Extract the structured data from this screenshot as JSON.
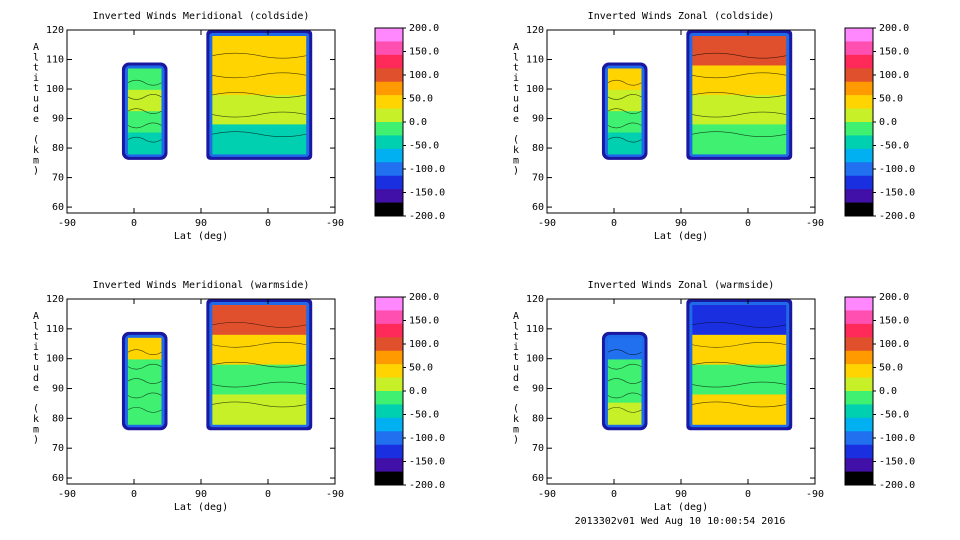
{
  "footer": "2013302v01 Wed Aug 10 10:00:54 2016",
  "colorbar": {
    "labels": [
      "200.0",
      "150.0",
      "100.0",
      "50.0",
      "0.0",
      "-50.0",
      "-100.0",
      "-150.0",
      "-200.0"
    ],
    "colors": [
      "#ff88ff",
      "#ff4fb0",
      "#ff2a5a",
      "#e0502c",
      "#ff9a00",
      "#ffd400",
      "#c8f028",
      "#40f070",
      "#00d0b0",
      "#00b0f0",
      "#2070f0",
      "#1a30e0",
      "#4010a8",
      "#000000"
    ]
  },
  "chart_data": [
    {
      "type": "heatmap",
      "title": "Inverted Winds Meridional (coldside)",
      "xlabel": "Lat (deg)",
      "ylabel": "Altitude (km)",
      "xticks": [
        "-90",
        "0",
        "90",
        "0",
        "-90"
      ],
      "ylim": [
        58,
        120
      ],
      "yticks": [
        60,
        70,
        80,
        90,
        100,
        110,
        120
      ],
      "colorbar_range": [
        -200,
        200
      ],
      "cells": [
        {
          "alt": 112,
          "value": 40
        },
        {
          "alt": 105,
          "value": 50
        },
        {
          "alt": 95,
          "value": 20
        },
        {
          "alt": 85,
          "value": -60
        }
      ]
    },
    {
      "type": "heatmap",
      "title": "Inverted Winds Zonal (coldside)",
      "xlabel": "Lat (deg)",
      "ylabel": "Altitude (km)",
      "xticks": [
        "-90",
        "0",
        "90",
        "0",
        "-90"
      ],
      "ylim": [
        58,
        120
      ],
      "yticks": [
        60,
        70,
        80,
        90,
        100,
        110,
        120
      ],
      "colorbar_range": [
        -200,
        200
      ],
      "cells": [
        {
          "alt": 117,
          "value": 120
        },
        {
          "alt": 102,
          "value": 60
        },
        {
          "alt": 92,
          "value": 10
        },
        {
          "alt": 84,
          "value": -30
        }
      ]
    },
    {
      "type": "heatmap",
      "title": "Inverted Winds Meridional (warmside)",
      "xlabel": "Lat (deg)",
      "ylabel": "Altitude (km)",
      "xticks": [
        "-90",
        "0",
        "90",
        "0",
        "-90"
      ],
      "ylim": [
        58,
        120
      ],
      "yticks": [
        60,
        70,
        80,
        90,
        100,
        110,
        120
      ],
      "colorbar_range": [
        -200,
        200
      ],
      "cells": [
        {
          "alt": 113,
          "value": 110
        },
        {
          "alt": 100,
          "value": 40
        },
        {
          "alt": 90,
          "value": -20
        },
        {
          "alt": 83,
          "value": 30
        }
      ]
    },
    {
      "type": "heatmap",
      "title": "Inverted Winds Zonal (warmside)",
      "xlabel": "Lat (deg)",
      "ylabel": "Altitude (km)",
      "xticks": [
        "-90",
        "0",
        "90",
        "0",
        "-90"
      ],
      "ylim": [
        58,
        120
      ],
      "yticks": [
        60,
        70,
        80,
        90,
        100,
        110,
        120
      ],
      "colorbar_range": [
        -200,
        200
      ],
      "cells": [
        {
          "alt": 115,
          "value": -150
        },
        {
          "alt": 100,
          "value": 40
        },
        {
          "alt": 90,
          "value": 0
        },
        {
          "alt": 84,
          "value": 60
        }
      ]
    }
  ]
}
